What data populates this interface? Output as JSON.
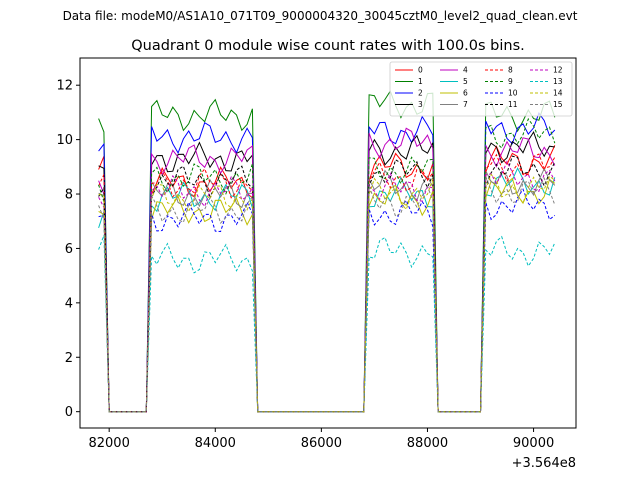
{
  "chart_data": {
    "type": "line",
    "suptitle": "Data file: modeM0/AS1A10_071T09_9000004320_30045cztM0_level2_quad_clean.evt",
    "title": "Quadrant 0 module wise count rates with 100.0s bins.",
    "xlabel": "",
    "ylabel": "",
    "x_offset_label": "+3.564e8",
    "xlim": [
      81450,
      90800
    ],
    "ylim": [
      -0.6,
      13.0
    ],
    "xticks": [
      82000,
      84000,
      86000,
      88000,
      90000
    ],
    "xtick_labels": [
      "82000",
      "84000",
      "86000",
      "88000",
      "90000"
    ],
    "yticks": [
      0,
      2,
      4,
      6,
      8,
      10,
      12
    ],
    "ytick_labels": [
      "0",
      "2",
      "4",
      "6",
      "8",
      "10",
      "12"
    ],
    "grid": false,
    "legend_position": "top-right",
    "legend_columns": 4,
    "segments": [
      {
        "x_start": 81800,
        "x_end": 81900
      },
      {
        "x_start": 82800,
        "x_end": 84700
      },
      {
        "x_start": 86900,
        "x_end": 88100
      },
      {
        "x_start": 89100,
        "x_end": 90400
      }
    ],
    "series": [
      {
        "name": "0",
        "color": "#ff0000",
        "dash": "solid",
        "levels": [
          8.9,
          8.4,
          9.0,
          9.2
        ]
      },
      {
        "name": "1",
        "color": "#008000",
        "dash": "solid",
        "levels": [
          10.3,
          10.9,
          11.3,
          10.9
        ]
      },
      {
        "name": "2",
        "color": "#0000ff",
        "dash": "solid",
        "levels": [
          9.7,
          10.1,
          10.3,
          10.4
        ]
      },
      {
        "name": "3",
        "color": "#000000",
        "dash": "solid",
        "levels": [
          8.8,
          9.3,
          9.6,
          9.7
        ]
      },
      {
        "name": "4",
        "color": "#bf00bf",
        "dash": "solid",
        "levels": [
          8.6,
          9.3,
          9.9,
          9.6
        ]
      },
      {
        "name": "5",
        "color": "#00bfbf",
        "dash": "solid",
        "levels": [
          7.3,
          7.9,
          8.0,
          8.4
        ]
      },
      {
        "name": "6",
        "color": "#bfbf00",
        "dash": "solid",
        "levels": [
          7.1,
          7.4,
          7.8,
          8.1
        ]
      },
      {
        "name": "7",
        "color": "#808080",
        "dash": "solid",
        "levels": [
          8.0,
          8.0,
          8.3,
          8.4
        ]
      },
      {
        "name": "8",
        "color": "#ff0000",
        "dash": "dashed",
        "levels": [
          8.2,
          8.4,
          8.6,
          9.0
        ]
      },
      {
        "name": "9",
        "color": "#008000",
        "dash": "dashed",
        "levels": [
          7.9,
          8.6,
          8.9,
          10.2
        ]
      },
      {
        "name": "10",
        "color": "#0000ff",
        "dash": "dashed",
        "levels": [
          7.6,
          7.1,
          7.3,
          7.6
        ]
      },
      {
        "name": "11",
        "color": "#000000",
        "dash": "dashed",
        "levels": [
          8.1,
          8.5,
          8.8,
          8.9
        ]
      },
      {
        "name": "12",
        "color": "#bf00bf",
        "dash": "dashed",
        "levels": [
          7.8,
          8.1,
          8.2,
          8.6
        ]
      },
      {
        "name": "13",
        "color": "#00bfbf",
        "dash": "dashed",
        "levels": [
          6.2,
          5.6,
          5.9,
          5.9
        ]
      },
      {
        "name": "14",
        "color": "#bfbf00",
        "dash": "dashed",
        "levels": [
          7.5,
          7.9,
          8.0,
          8.2
        ]
      },
      {
        "name": "15",
        "color": "#808080",
        "dash": "dashed",
        "levels": [
          7.4,
          7.4,
          7.7,
          8.1
        ]
      }
    ]
  }
}
